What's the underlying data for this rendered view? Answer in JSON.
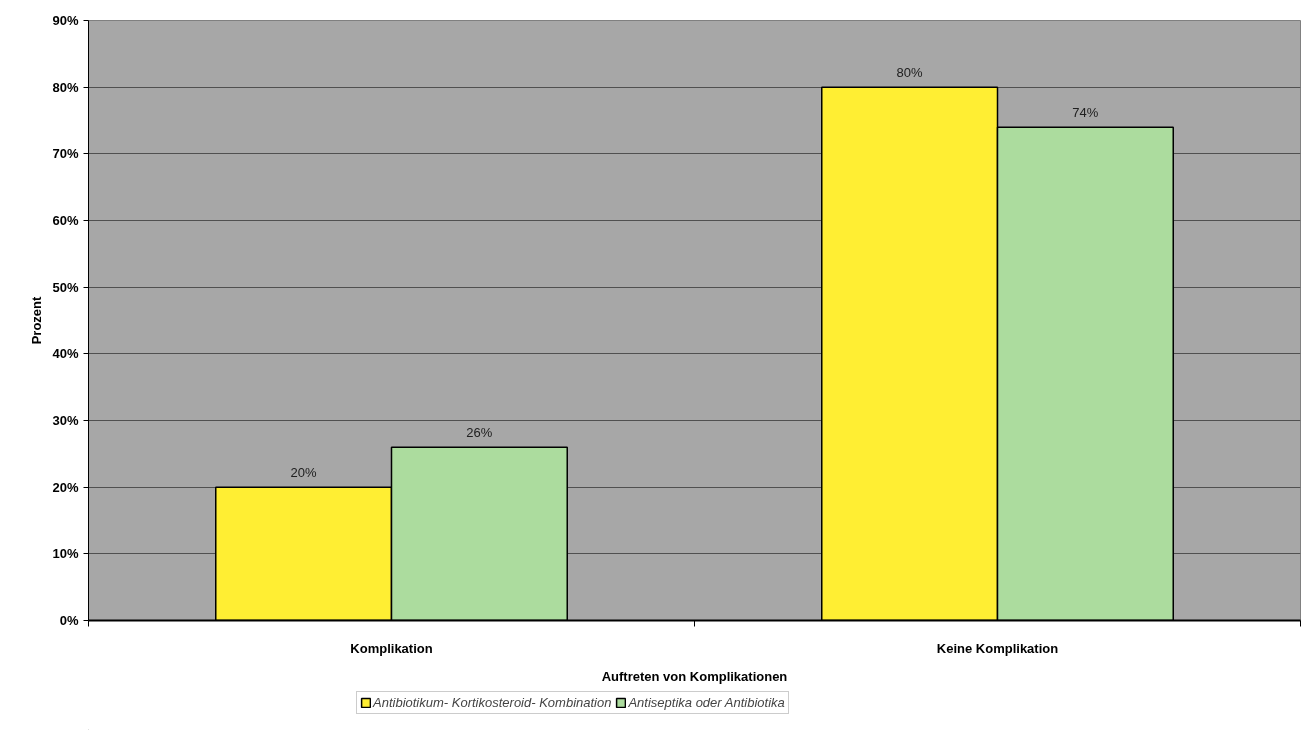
{
  "chart_data": {
    "type": "bar",
    "xlabel": "Auftreten von Komplikationen",
    "ylabel": "Prozent",
    "categories": [
      "Komplikation",
      "Keine Komplikation"
    ],
    "series": [
      {
        "name": "Antibiotikum- Kortikosteroid- Kombination",
        "color": "#ffee33",
        "values": [
          20,
          80
        ],
        "value_labels": [
          "20%",
          "80%"
        ]
      },
      {
        "name": "Antiseptika oder Antibiotika",
        "color": "#acdc9e",
        "values": [
          26,
          74
        ],
        "value_labels": [
          "26%",
          "74%"
        ]
      }
    ],
    "ylim": [
      0,
      90
    ],
    "yticks": [
      {
        "value": 0,
        "label": "0%"
      },
      {
        "value": 10,
        "label": "10%"
      },
      {
        "value": 20,
        "label": "20%"
      },
      {
        "value": 30,
        "label": "30%"
      },
      {
        "value": 40,
        "label": "40%"
      },
      {
        "value": 50,
        "label": "50%"
      },
      {
        "value": 60,
        "label": "60%"
      },
      {
        "value": 70,
        "label": "70%"
      },
      {
        "value": 80,
        "label": "80%"
      },
      {
        "value": 90,
        "label": "90%"
      }
    ],
    "grid": "y",
    "legend": "bottom"
  }
}
